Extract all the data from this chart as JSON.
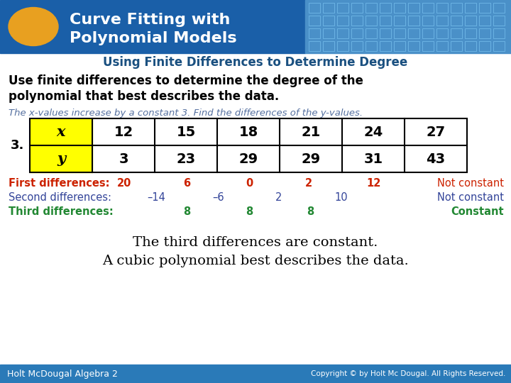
{
  "title_line1": "Curve Fitting with",
  "title_line2": "Polynomial Models",
  "subtitle": "Using Finite Differences to Determine Degree",
  "bold_text_line1": "Use finite differences to determine the degree of the",
  "bold_text_line2": "polynomial that best describes the data.",
  "italic_text": "The x-values increase by a constant 3. Find the differences of the y-values.",
  "problem_num": "3.",
  "x_label": "x",
  "y_label": "y",
  "x_values": [
    "12",
    "15",
    "18",
    "21",
    "24",
    "27"
  ],
  "y_values": [
    "3",
    "23",
    "29",
    "29",
    "31",
    "43"
  ],
  "first_diff_label": "First differences:",
  "first_diff_values": [
    "20",
    "6",
    "0",
    "2",
    "12"
  ],
  "first_diff_note": "Not constant",
  "second_diff_label": "Second differences:",
  "second_diff_values": [
    "–14",
    "–6",
    "2",
    "10"
  ],
  "second_diff_note": "Not constant",
  "third_diff_label": "Third differences:",
  "third_diff_values": [
    "8",
    "8",
    "8"
  ],
  "third_diff_note": "Constant",
  "conclusion_line1": "The third differences are constant.",
  "conclusion_line2": "A cubic polynomial best describes the data.",
  "footer_left": "Holt McDougal Algebra 2",
  "footer_right": "Copyright © by Holt Mc Dougal. All Rights Reserved.",
  "header_bg_color": "#1a5fa8",
  "header_bg_color2": "#4a90c8",
  "subtitle_color": "#1a5080",
  "bold_text_color": "#000000",
  "italic_text_color": "#5570a0",
  "first_diff_color": "#cc2200",
  "second_diff_color": "#334499",
  "third_diff_color": "#228833",
  "conclusion_color": "#000000",
  "footer_bg_color": "#2a7ab8",
  "footer_text_color": "#ffffff",
  "table_header_bg": "#ffff00",
  "table_border_color": "#000000",
  "oval_color": "#e8a020",
  "bg_color": "#ffffff"
}
